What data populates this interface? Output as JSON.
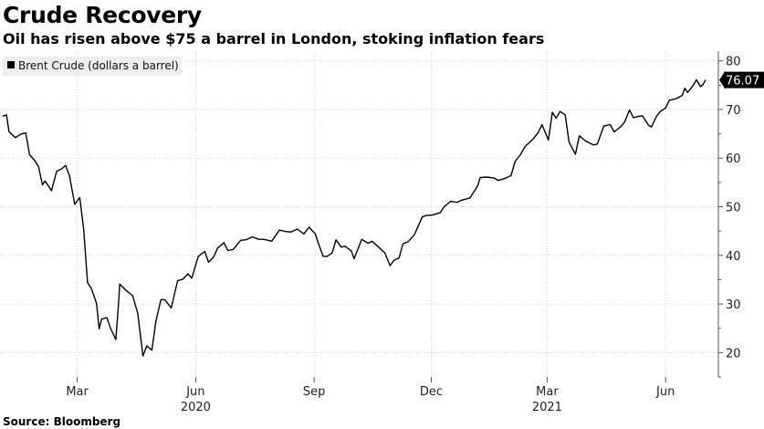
{
  "title": "Crude Recovery",
  "subtitle": "Oil has risen above $75 a barrel in London, stoking inflation fears",
  "source": "Source: Bloomberg",
  "colors": {
    "line": "#000000",
    "grid": "#cfcfcf",
    "axis": "#555555",
    "label_bg": "#000000",
    "legend_bg": "#eeeeee"
  },
  "chart_data": {
    "type": "line",
    "title": "",
    "xlabel": "",
    "ylabel": "",
    "ylim": [
      15,
      82
    ],
    "yticks": [
      20,
      30,
      40,
      50,
      60,
      70,
      80
    ],
    "grid": true,
    "legend_position": "top-left",
    "x_tick_labels": [
      {
        "date": "2020-03-01",
        "label": "Mar"
      },
      {
        "date": "2020-06-01",
        "label": "Jun"
      },
      {
        "date": "2020-09-01",
        "label": "Sep"
      },
      {
        "date": "2020-12-01",
        "label": "Dec"
      },
      {
        "date": "2021-03-01",
        "label": "Mar"
      },
      {
        "date": "2021-06-01",
        "label": "Jun"
      }
    ],
    "year_labels": [
      {
        "date": "2020-06-01",
        "label": "2020"
      },
      {
        "date": "2021-03-01",
        "label": "2021"
      }
    ],
    "last_value_label": "76.07",
    "series": [
      {
        "name": "Brent Crude (dollars a barrel)",
        "points": [
          [
            "2020-01-03",
            68.6
          ],
          [
            "2020-01-06",
            68.9
          ],
          [
            "2020-01-08",
            65.4
          ],
          [
            "2020-01-13",
            64.2
          ],
          [
            "2020-01-17",
            64.9
          ],
          [
            "2020-01-21",
            65.2
          ],
          [
            "2020-01-24",
            60.7
          ],
          [
            "2020-01-28",
            59.5
          ],
          [
            "2020-01-31",
            58.2
          ],
          [
            "2020-02-03",
            54.5
          ],
          [
            "2020-02-05",
            55.3
          ],
          [
            "2020-02-07",
            54.5
          ],
          [
            "2020-02-10",
            53.3
          ],
          [
            "2020-02-14",
            57.3
          ],
          [
            "2020-02-18",
            57.8
          ],
          [
            "2020-02-21",
            58.5
          ],
          [
            "2020-02-24",
            56.3
          ],
          [
            "2020-02-26",
            53.4
          ],
          [
            "2020-02-28",
            50.5
          ],
          [
            "2020-03-03",
            51.9
          ],
          [
            "2020-03-06",
            45.3
          ],
          [
            "2020-03-09",
            34.4
          ],
          [
            "2020-03-12",
            33.2
          ],
          [
            "2020-03-16",
            30.1
          ],
          [
            "2020-03-18",
            24.9
          ],
          [
            "2020-03-20",
            26.9
          ],
          [
            "2020-03-24",
            27.2
          ],
          [
            "2020-03-27",
            24.9
          ],
          [
            "2020-03-31",
            22.7
          ],
          [
            "2020-04-02",
            29.9
          ],
          [
            "2020-04-03",
            34.1
          ],
          [
            "2020-04-08",
            32.8
          ],
          [
            "2020-04-13",
            31.7
          ],
          [
            "2020-04-17",
            28.1
          ],
          [
            "2020-04-21",
            19.3
          ],
          [
            "2020-04-24",
            21.4
          ],
          [
            "2020-04-28",
            20.5
          ],
          [
            "2020-05-01",
            26.4
          ],
          [
            "2020-05-05",
            30.9
          ],
          [
            "2020-05-08",
            30.9
          ],
          [
            "2020-05-13",
            29.2
          ],
          [
            "2020-05-18",
            34.8
          ],
          [
            "2020-05-22",
            35.1
          ],
          [
            "2020-05-26",
            36.2
          ],
          [
            "2020-05-29",
            35.3
          ],
          [
            "2020-06-03",
            39.8
          ],
          [
            "2020-06-08",
            40.8
          ],
          [
            "2020-06-11",
            38.6
          ],
          [
            "2020-06-15",
            39.7
          ],
          [
            "2020-06-18",
            41.5
          ],
          [
            "2020-06-23",
            42.6
          ],
          [
            "2020-06-26",
            41.0
          ],
          [
            "2020-06-30",
            41.2
          ],
          [
            "2020-07-06",
            43.1
          ],
          [
            "2020-07-10",
            43.2
          ],
          [
            "2020-07-15",
            43.8
          ],
          [
            "2020-07-20",
            43.3
          ],
          [
            "2020-07-24",
            43.3
          ],
          [
            "2020-07-30",
            42.9
          ],
          [
            "2020-08-05",
            45.2
          ],
          [
            "2020-08-10",
            44.9
          ],
          [
            "2020-08-14",
            44.8
          ],
          [
            "2020-08-19",
            45.4
          ],
          [
            "2020-08-24",
            44.4
          ],
          [
            "2020-08-28",
            45.8
          ],
          [
            "2020-09-02",
            44.4
          ],
          [
            "2020-09-04",
            42.7
          ],
          [
            "2020-09-08",
            39.8
          ],
          [
            "2020-09-11",
            39.8
          ],
          [
            "2020-09-15",
            40.5
          ],
          [
            "2020-09-18",
            43.2
          ],
          [
            "2020-09-22",
            41.7
          ],
          [
            "2020-09-25",
            41.9
          ],
          [
            "2020-09-30",
            40.9
          ],
          [
            "2020-10-02",
            39.3
          ],
          [
            "2020-10-05",
            41.3
          ],
          [
            "2020-10-08",
            43.3
          ],
          [
            "2020-10-13",
            42.5
          ],
          [
            "2020-10-16",
            42.9
          ],
          [
            "2020-10-21",
            41.7
          ],
          [
            "2020-10-26",
            40.5
          ],
          [
            "2020-10-30",
            37.9
          ],
          [
            "2020-11-02",
            39.0
          ],
          [
            "2020-11-06",
            39.5
          ],
          [
            "2020-11-09",
            42.4
          ],
          [
            "2020-11-13",
            42.8
          ],
          [
            "2020-11-18",
            44.3
          ],
          [
            "2020-11-24",
            47.9
          ],
          [
            "2020-11-27",
            48.2
          ],
          [
            "2020-12-02",
            48.3
          ],
          [
            "2020-12-08",
            48.8
          ],
          [
            "2020-12-11",
            50.0
          ],
          [
            "2020-12-16",
            51.1
          ],
          [
            "2020-12-21",
            50.9
          ],
          [
            "2020-12-24",
            51.3
          ],
          [
            "2020-12-31",
            51.8
          ],
          [
            "2021-01-06",
            54.3
          ],
          [
            "2021-01-08",
            55.99
          ],
          [
            "2021-01-13",
            56.1
          ],
          [
            "2021-01-19",
            55.9
          ],
          [
            "2021-01-22",
            55.4
          ],
          [
            "2021-01-27",
            55.8
          ],
          [
            "2021-02-01",
            56.4
          ],
          [
            "2021-02-04",
            59.3
          ],
          [
            "2021-02-08",
            60.6
          ],
          [
            "2021-02-12",
            62.4
          ],
          [
            "2021-02-18",
            63.9
          ],
          [
            "2021-02-22",
            65.2
          ],
          [
            "2021-02-25",
            66.9
          ],
          [
            "2021-03-02",
            63.7
          ],
          [
            "2021-03-05",
            69.4
          ],
          [
            "2021-03-08",
            68.2
          ],
          [
            "2021-03-11",
            69.6
          ],
          [
            "2021-03-15",
            68.9
          ],
          [
            "2021-03-18",
            63.3
          ],
          [
            "2021-03-23",
            60.8
          ],
          [
            "2021-03-26",
            64.6
          ],
          [
            "2021-03-31",
            63.5
          ],
          [
            "2021-04-06",
            62.7
          ],
          [
            "2021-04-09",
            62.9
          ],
          [
            "2021-04-14",
            66.6
          ],
          [
            "2021-04-19",
            66.9
          ],
          [
            "2021-04-22",
            65.4
          ],
          [
            "2021-04-27",
            66.4
          ],
          [
            "2021-04-30",
            67.3
          ],
          [
            "2021-05-04",
            69.9
          ],
          [
            "2021-05-07",
            68.3
          ],
          [
            "2021-05-11",
            68.6
          ],
          [
            "2021-05-14",
            68.7
          ],
          [
            "2021-05-19",
            66.7
          ],
          [
            "2021-05-21",
            66.4
          ],
          [
            "2021-05-25",
            68.6
          ],
          [
            "2021-05-28",
            69.6
          ],
          [
            "2021-06-01",
            70.3
          ],
          [
            "2021-06-04",
            71.9
          ],
          [
            "2021-06-09",
            72.2
          ],
          [
            "2021-06-14",
            72.9
          ],
          [
            "2021-06-16",
            74.4
          ],
          [
            "2021-06-18",
            73.5
          ],
          [
            "2021-06-22",
            74.8
          ],
          [
            "2021-06-25",
            76.1
          ],
          [
            "2021-06-28",
            74.7
          ],
          [
            "2021-06-30",
            75.1
          ],
          [
            "2021-07-02",
            76.07
          ]
        ]
      }
    ]
  }
}
